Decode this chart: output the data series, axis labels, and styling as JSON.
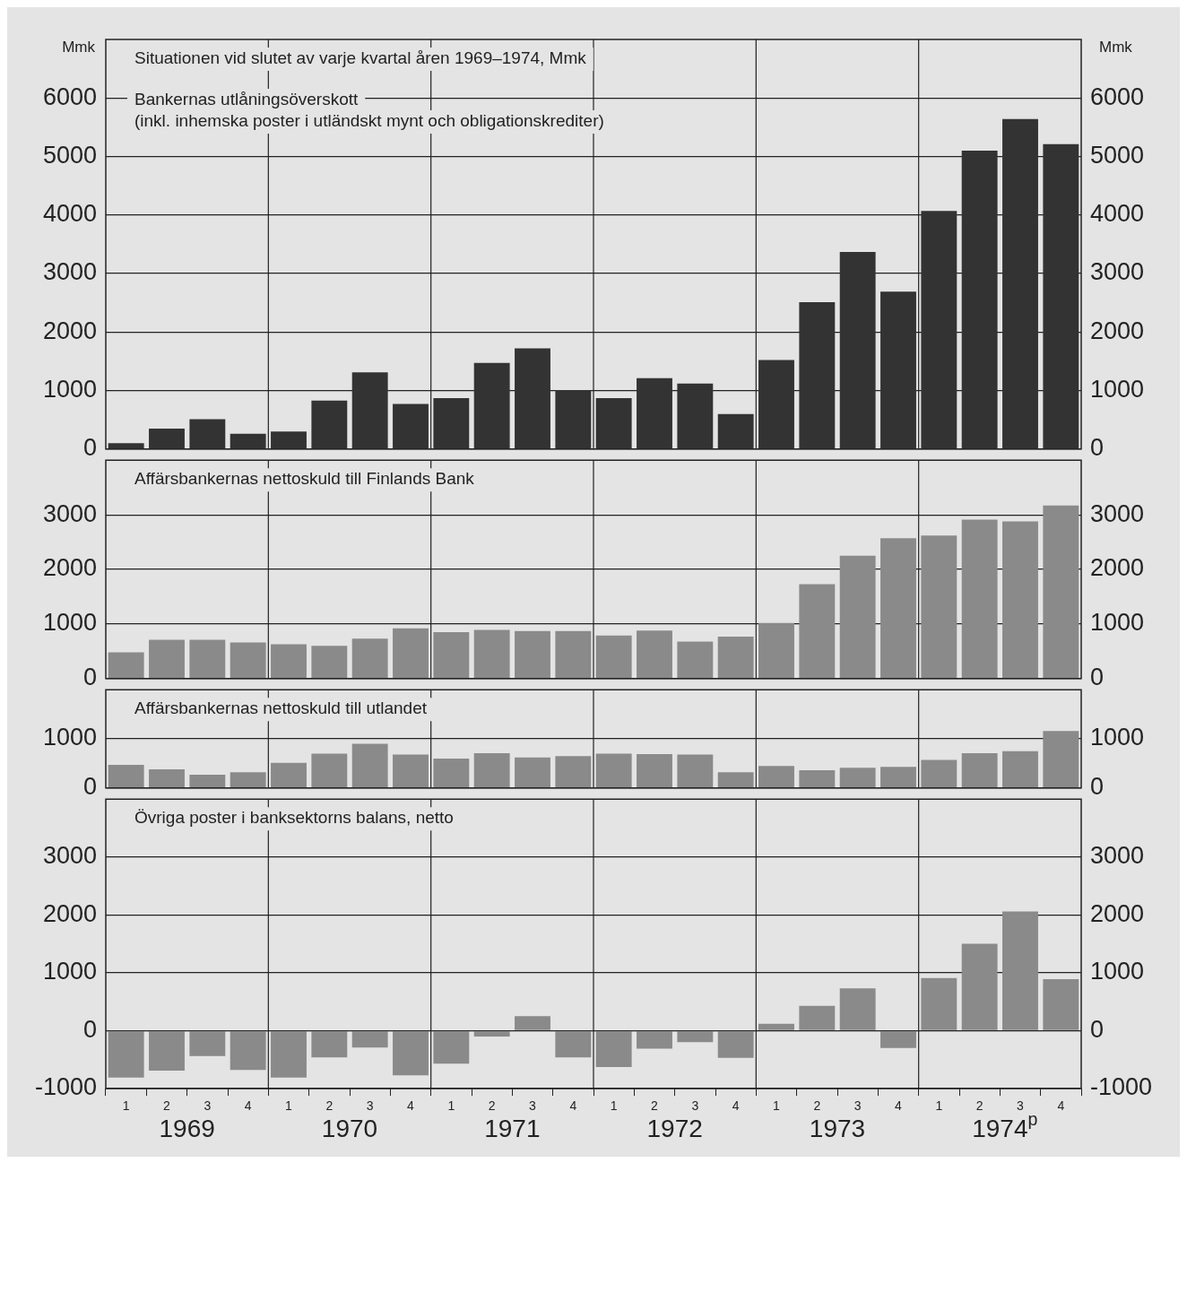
{
  "chart_data": [
    {
      "type": "bar",
      "title": "Situationen vid slutet av varje kvartal åren 1969–1974, Mmk",
      "subtitle": "Bankernas utlåningsöverskott\n(inkl. inhemska poster i utländskt mynt och obligationskrediter)",
      "ylabel": "Mmk",
      "y2label": "Mmk",
      "categories": [
        "1",
        "2",
        "3",
        "4",
        "1",
        "2",
        "3",
        "4",
        "1",
        "2",
        "3",
        "4",
        "1",
        "2",
        "3",
        "4",
        "1",
        "2",
        "3",
        "4",
        "1",
        "2",
        "3",
        "4"
      ],
      "values": [
        100,
        350,
        510,
        260,
        300,
        830,
        1310,
        770,
        870,
        1470,
        1720,
        1010,
        870,
        1210,
        1120,
        600,
        1520,
        2510,
        3370,
        2690,
        4070,
        5100,
        5640,
        5210
      ],
      "color": "#333333",
      "ylim": [
        0,
        7000
      ],
      "yticks": [
        0,
        1000,
        2000,
        3000,
        4000,
        5000,
        6000
      ],
      "y2lim": [
        0,
        7000
      ],
      "y2ticks": [
        0,
        1000,
        2000,
        3000,
        4000,
        5000,
        6000
      ],
      "grid": true,
      "tick_labels": "y"
    },
    {
      "type": "bar",
      "title": "Affärsbankernas nettoskuld till Finlands Bank",
      "categories": [
        "1",
        "2",
        "3",
        "4",
        "1",
        "2",
        "3",
        "4",
        "1",
        "2",
        "3",
        "4",
        "1",
        "2",
        "3",
        "4",
        "1",
        "2",
        "3",
        "4",
        "1",
        "2",
        "3",
        "4"
      ],
      "values": [
        480,
        710,
        710,
        660,
        630,
        600,
        730,
        920,
        850,
        890,
        870,
        870,
        790,
        880,
        680,
        770,
        1020,
        1730,
        2250,
        2570,
        2620,
        2910,
        2880,
        3170
      ],
      "color": "#8a8a8a",
      "ylim": [
        0,
        4000
      ],
      "yticks": [
        0,
        1000,
        2000,
        3000
      ],
      "y2lim": [
        0,
        4000
      ],
      "y2ticks": [
        0,
        1000,
        2000,
        3000
      ],
      "grid": true,
      "tick_labels": "y"
    },
    {
      "type": "bar",
      "title": "Affärsbankernas nettoskuld till utlandet",
      "categories": [
        "1",
        "2",
        "3",
        "4",
        "1",
        "2",
        "3",
        "4",
        "1",
        "2",
        "3",
        "4",
        "1",
        "2",
        "3",
        "4",
        "1",
        "2",
        "3",
        "4",
        "1",
        "2",
        "3",
        "4"
      ],
      "values": [
        470,
        380,
        270,
        320,
        510,
        700,
        900,
        680,
        600,
        710,
        620,
        650,
        700,
        690,
        680,
        320,
        450,
        360,
        410,
        430,
        570,
        710,
        750,
        1160
      ],
      "color": "#8a8a8a",
      "ylim": [
        0,
        2000
      ],
      "yticks": [
        0,
        1000
      ],
      "y2lim": [
        0,
        2000
      ],
      "y2ticks": [
        0,
        1000
      ],
      "grid": true,
      "tick_labels": "y"
    },
    {
      "type": "bar",
      "title": "Övriga poster i banksektorns balans, netto",
      "categories": [
        "1",
        "2",
        "3",
        "4",
        "1",
        "2",
        "3",
        "4",
        "1",
        "2",
        "3",
        "4",
        "1",
        "2",
        "3",
        "4",
        "1",
        "2",
        "3",
        "4",
        "1",
        "2",
        "3",
        "4"
      ],
      "values": [
        -810,
        -690,
        -440,
        -680,
        -810,
        -460,
        -290,
        -770,
        -570,
        -100,
        250,
        -460,
        -630,
        -310,
        -200,
        -470,
        120,
        430,
        730,
        -300,
        910,
        1500,
        2060,
        890
      ],
      "color": "#8a8a8a",
      "ylim": [
        -1000,
        4000
      ],
      "yticks": [
        -1000,
        0,
        1000,
        2000,
        3000
      ],
      "y2lim": [
        -1000,
        4000
      ],
      "y2ticks": [
        -1000,
        0,
        1000,
        2000,
        3000
      ],
      "grid": true,
      "annotations": [
        "1969",
        "1970",
        "1971",
        "1972",
        "1973",
        "1974$^{p}$"
      ]
    }
  ]
}
